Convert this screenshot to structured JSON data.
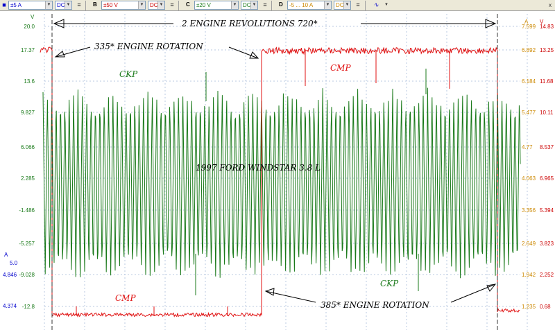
{
  "toolbar": {
    "left_icon": "scope-mode-icon",
    "channels": [
      {
        "letter": "A",
        "range": "±5 A",
        "coupling": "DC",
        "range_color": "#0000cc",
        "coupling_color": "#0000cc"
      },
      {
        "letter": "B",
        "range": "±50 V",
        "coupling": "DC",
        "range_color": "#cc0000",
        "coupling_color": "#cc0000"
      },
      {
        "letter": "C",
        "range": "±20 V",
        "coupling": "DC",
        "range_color": "#1a7a1a",
        "coupling_color": "#1a7a1a"
      },
      {
        "letter": "D",
        "range": "-5 ... 10 A",
        "coupling": "DC",
        "range_color": "#cc8800",
        "coupling_color": "#cc8800"
      }
    ],
    "extra_icon": "waveform-tools-icon",
    "close_glyph": "x"
  },
  "axes": {
    "left_unit": "V",
    "left_ticks": [
      "20.0",
      "17.37",
      "13.6",
      "9.827",
      "6.066",
      "2.285",
      "-1.486",
      "-5.257",
      "-9.028",
      "-12.8"
    ],
    "blue_unit": "A",
    "blue_ticks": [
      "5.0",
      "4.846",
      "4.374"
    ],
    "right_units": [
      "A",
      "V"
    ],
    "right_orange_ticks": [
      "7.599",
      "6.892",
      "6.184",
      "5.477",
      "4.77",
      "4.063",
      "3.356",
      "2.649",
      "1.942",
      "1.235"
    ],
    "right_red_ticks": [
      "14.83",
      "13.25",
      "11.68",
      "10.11",
      "8.537",
      "6.965",
      "5.394",
      "3.823",
      "2.252",
      "0.68"
    ],
    "colors": {
      "green": "#1a7a1a",
      "blue": "#0000cc",
      "orange": "#cc8800",
      "red": "#cc0000"
    }
  },
  "annotations": {
    "two_revs": "2   ENGINE  REVOLUTIONS   720*",
    "rot_335": "335* ENGINE ROTATION",
    "rot_385": "385* ENGINE ROTATION",
    "ckp_1": "CKP",
    "ckp_2": "CKP",
    "cmp_1": "CMP",
    "cmp_2": "CMP",
    "vehicle": "1997   FORD   WINDSTAR   3.8  L"
  }
}
